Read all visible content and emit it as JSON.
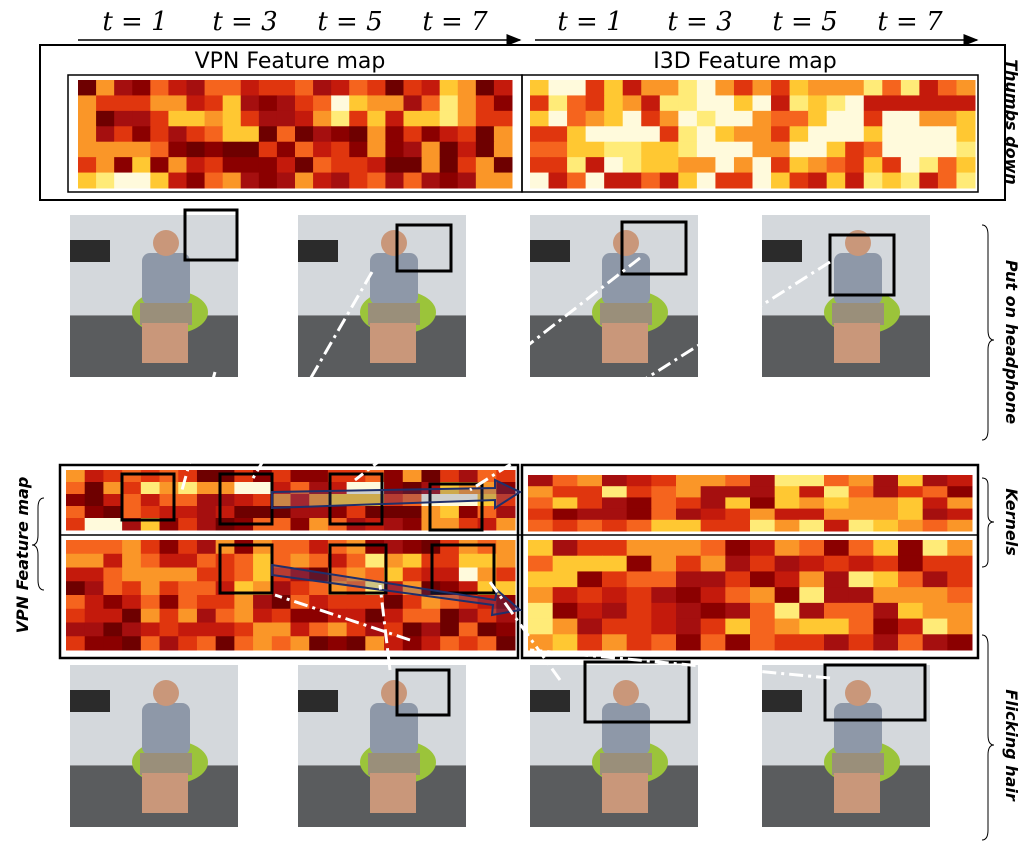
{
  "top_axis": {
    "left_ticks": [
      "t = 1",
      "t = 3",
      "t = 5",
      "t = 7"
    ],
    "right_ticks": [
      "t = 1",
      "t = 3",
      "t = 5",
      "t = 7"
    ]
  },
  "panels": {
    "vpn_title": "VPN Feature map",
    "i3d_title": "I3D Feature map"
  },
  "side_labels": {
    "thumbs_down": "Thumbs down",
    "put_on_headphone": "Put on headphone",
    "kernels": "Kernels",
    "flicking_hair": "Flicking hair",
    "vpn_feature_map": "VPN Feature map"
  }
}
